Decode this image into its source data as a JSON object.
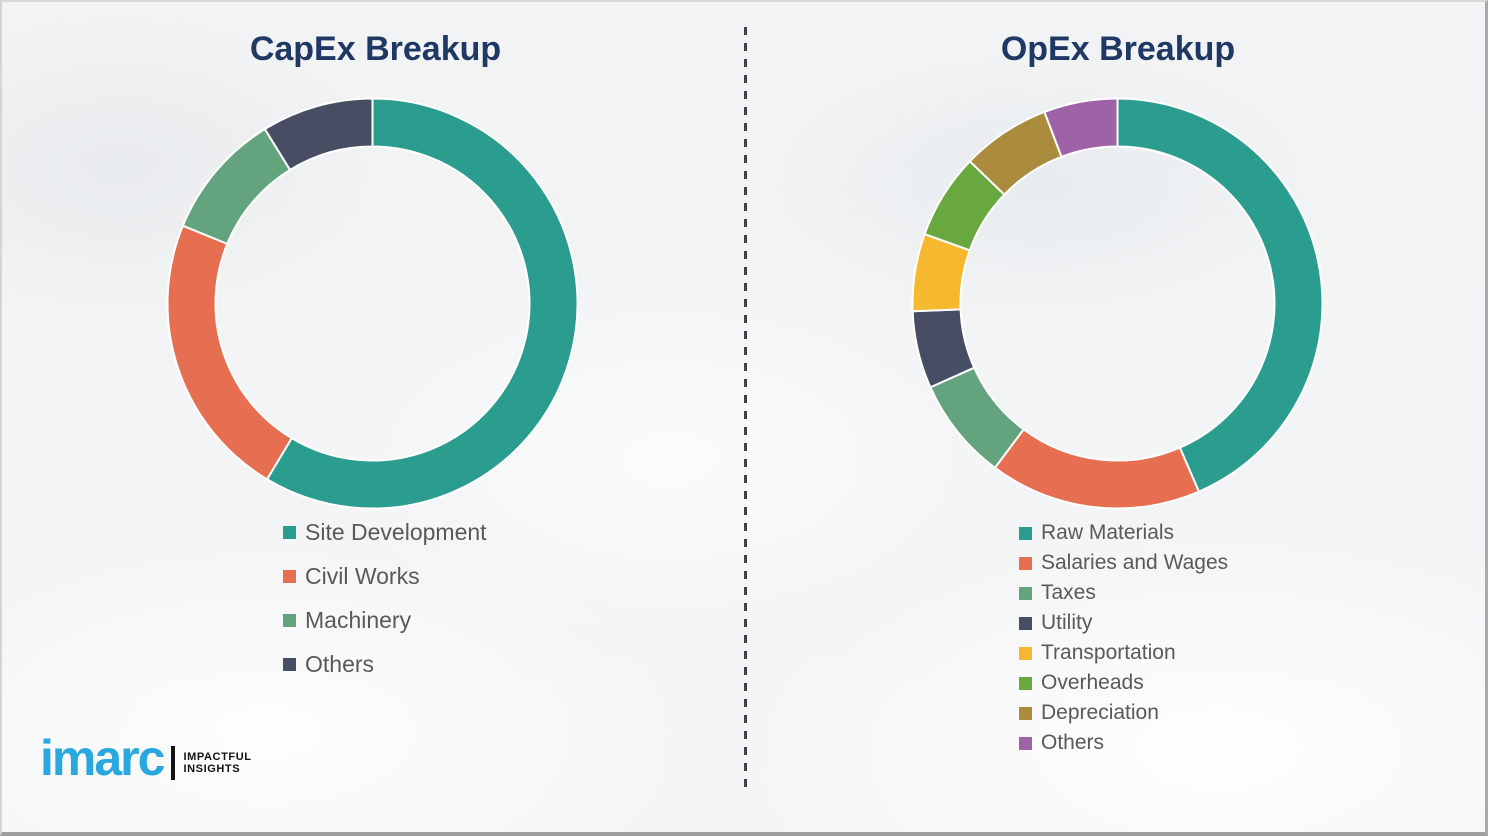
{
  "theme": {
    "title_color": "#1F3864",
    "legend_text_color": "#58595B",
    "divider_color": "#3F4144",
    "logo_blue": "#29A8E0",
    "background_color": "#F2F3F4",
    "segment_gap_color": "#FFFFFF"
  },
  "logo": {
    "wordmark": "imarc",
    "tagline_line1": "IMPACTFUL",
    "tagline_line2": "INSIGHTS"
  },
  "chart_data": [
    {
      "type": "pie",
      "subtype": "donut",
      "title": "CapEx Breakup",
      "labels": [
        "Site Development",
        "Civil Works",
        "Machinery",
        "Others"
      ],
      "values": [
        58.6,
        22.6,
        10.0,
        8.8
      ],
      "colors": [
        "#2A9D8F",
        "#E76F51",
        "#63A47E",
        "#474E63"
      ],
      "units": "percent",
      "start_angle_deg": 0,
      "direction": "clockwise",
      "legend_position": "below-left"
    },
    {
      "type": "pie",
      "subtype": "donut",
      "title": "OpEx Breakup",
      "labels": [
        "Raw Materials",
        "Salaries and Wages",
        "Taxes",
        "Utility",
        "Transportation",
        "Overheads",
        "Depreciation",
        "Others"
      ],
      "values": [
        43.5,
        16.7,
        8.1,
        6.1,
        6.1,
        6.7,
        7.0,
        5.8
      ],
      "colors": [
        "#2A9D8F",
        "#E76F51",
        "#63A47E",
        "#474E63",
        "#F5B82E",
        "#69A83F",
        "#AB8B3D",
        "#9D63A6"
      ],
      "units": "percent",
      "start_angle_deg": 0,
      "direction": "clockwise",
      "legend_position": "below-left"
    }
  ]
}
